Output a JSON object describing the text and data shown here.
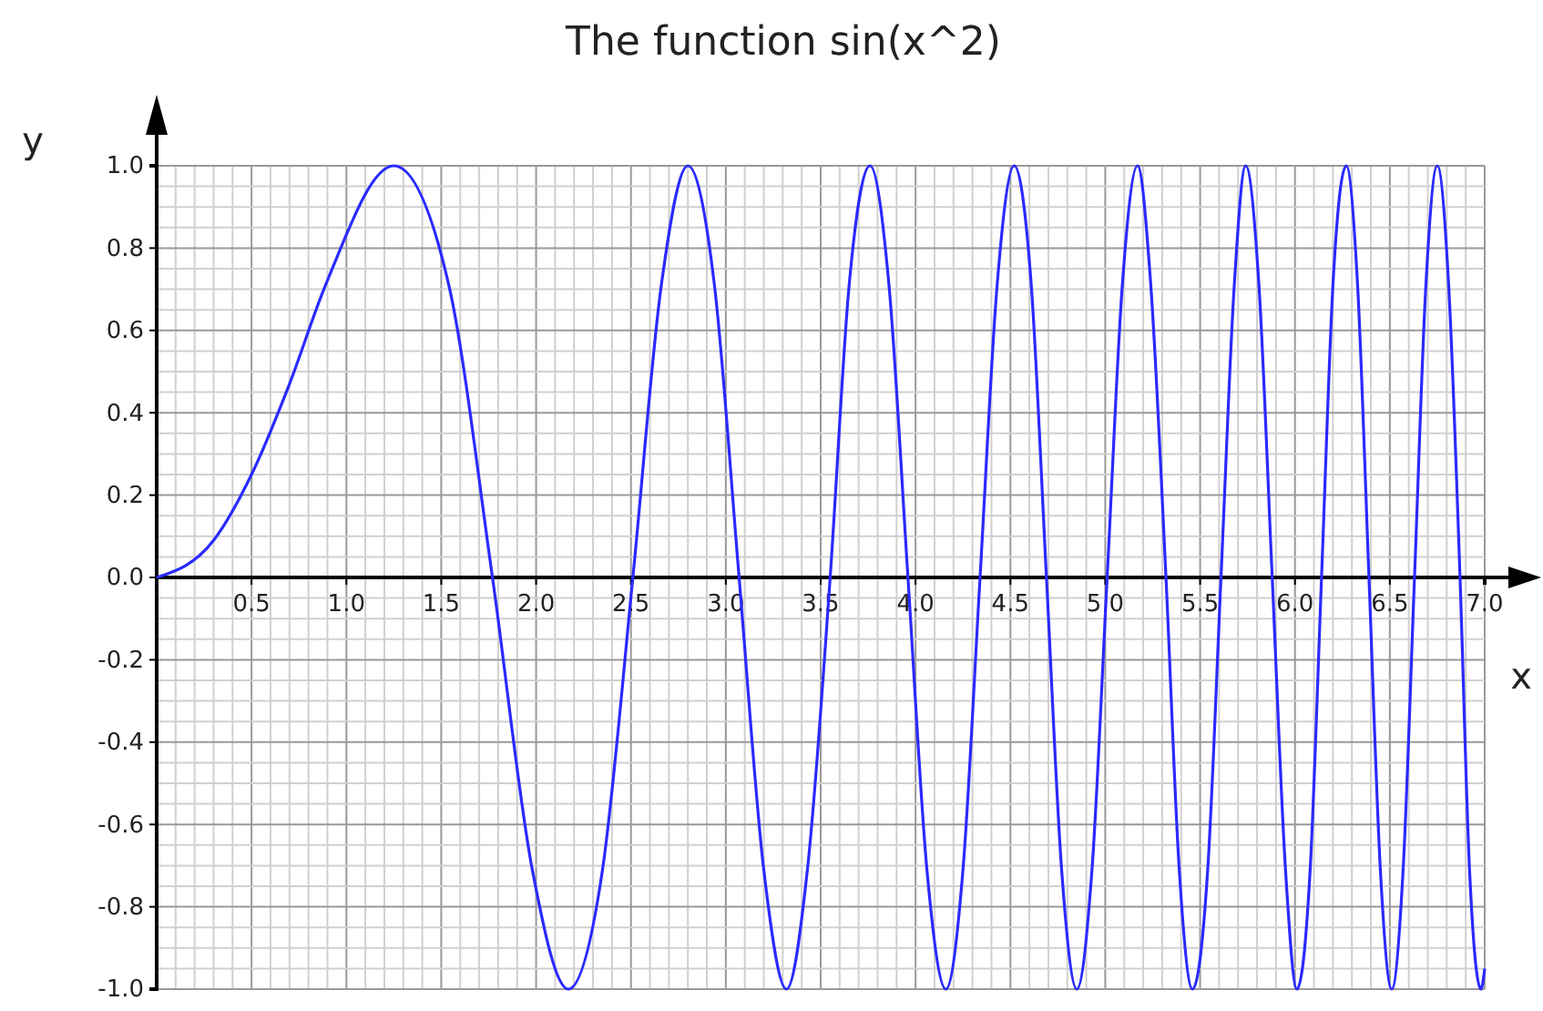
{
  "chart_data": {
    "type": "line",
    "title": "The function sin(x^2)",
    "xlabel": "x",
    "ylabel": "y",
    "series": [
      {
        "color": "#2a2aff",
        "x": [
          0,
          0.3,
          0.5,
          0.7,
          0.89,
          1.25,
          1.54,
          1.77,
          1.98,
          2.17,
          2.35,
          2.51,
          2.66,
          2.8,
          2.94,
          3.07,
          3.2,
          3.32,
          3.43,
          3.55,
          3.65,
          3.76,
          3.86,
          3.96,
          4.06,
          4.16,
          4.25,
          4.34,
          4.43,
          4.52,
          4.61,
          4.69,
          4.77,
          4.85,
          4.93,
          5.01,
          5.09,
          5.17,
          5.24,
          5.32,
          5.39,
          5.46,
          5.54,
          5.61,
          5.68,
          5.74,
          5.81,
          5.88,
          5.95,
          6.01,
          6.08,
          6.14,
          6.2,
          6.27,
          6.33,
          6.39,
          6.45,
          6.51,
          6.57,
          6.63,
          6.69,
          6.75,
          6.81,
          6.87,
          6.92,
          6.98,
          7.0
        ],
        "values": [
          0,
          0.09,
          0.25,
          0.47,
          0.71,
          1,
          0.71,
          0,
          -0.71,
          -1,
          -0.71,
          0,
          0.71,
          1,
          0.71,
          0,
          -0.71,
          -1,
          -0.71,
          0,
          0.71,
          1,
          0.71,
          0,
          -0.71,
          -1,
          -0.71,
          0,
          0.71,
          1,
          0.71,
          0,
          -0.71,
          -1,
          -0.71,
          0,
          0.71,
          1,
          0.71,
          0,
          -0.71,
          -1,
          -0.71,
          0,
          0.71,
          1,
          0.71,
          0,
          -0.71,
          -1,
          -0.71,
          0,
          0.71,
          1,
          0.71,
          0,
          -0.71,
          -1,
          -0.71,
          0,
          0.71,
          1,
          0.71,
          0,
          -0.71,
          -1,
          -0.95
        ]
      }
    ],
    "xlim": [
      0,
      7.0
    ],
    "ylim": [
      -1.0,
      1.0
    ],
    "xticks": [
      0.5,
      {
        "value": 1,
        "label": "1.0"
      },
      1.5,
      {
        "value": 2,
        "label": "2.0"
      },
      2.5,
      {
        "value": 3,
        "label": "3.0"
      },
      3.5,
      {
        "value": 4,
        "label": "4.0"
      },
      4.5,
      {
        "value": 5,
        "label": "5.0"
      },
      5.5,
      {
        "value": 6,
        "label": "6.0"
      },
      6.5,
      {
        "value": 7,
        "label": "7.0"
      }
    ],
    "yticks": [
      {
        "value": -1,
        "label": "-1.0"
      },
      -0.8,
      -0.6,
      -0.4,
      -0.2,
      {
        "value": 0,
        "label": "0.0"
      },
      0.2,
      0.4,
      0.6,
      0.8,
      {
        "value": 1,
        "label": "1.0"
      }
    ],
    "grid": true,
    "marker": "none",
    "line_style": "solid"
  }
}
